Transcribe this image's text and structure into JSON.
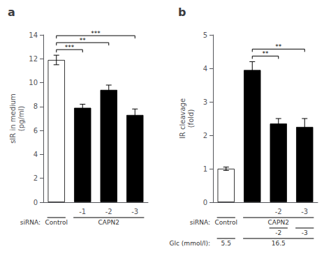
{
  "chart_data": [
    {
      "type": "bar",
      "title": "a",
      "categories": [
        null,
        "-1",
        "-2",
        "-3"
      ],
      "values": [
        11.9,
        7.9,
        9.4,
        7.3
      ],
      "errors": [
        0.4,
        0.3,
        0.4,
        0.5
      ],
      "colors": [
        "white",
        "black",
        "black",
        "black"
      ],
      "ylabel": "sIR in medium\n(pg/ml)",
      "ylim": [
        0,
        14
      ],
      "yticks": [
        0,
        2,
        4,
        6,
        8,
        10,
        12,
        14
      ],
      "grid": false,
      "annotations": [
        {
          "text": "***",
          "between": [
            0,
            1
          ]
        },
        {
          "text": "**",
          "between": [
            0,
            2
          ]
        },
        {
          "text": "***",
          "between": [
            0,
            3
          ]
        }
      ],
      "x_groups": [
        {
          "label": "siRNA:",
          "groups": [
            {
              "text": "Control",
              "between": [
                0,
                0
              ]
            },
            {
              "text": "CAPN2",
              "between": [
                1,
                3
              ]
            }
          ]
        }
      ]
    },
    {
      "type": "bar",
      "title": "b",
      "categories": [
        null,
        null,
        "-2",
        "-3"
      ],
      "values": [
        1.0,
        3.95,
        2.35,
        2.25
      ],
      "errors": [
        0.05,
        0.25,
        0.15,
        0.25
      ],
      "colors": [
        "white",
        "black",
        "black",
        "black"
      ],
      "ylabel": "IR cleavage\n(fold)",
      "ylim": [
        0,
        5
      ],
      "yticks": [
        0,
        1,
        2,
        3,
        4,
        5
      ],
      "grid": false,
      "annotations": [
        {
          "text": "**",
          "between": [
            1,
            2
          ]
        },
        {
          "text": "**",
          "between": [
            1,
            3
          ]
        }
      ],
      "x_groups": [
        {
          "label": "siRNA:",
          "groups": [
            {
              "text": "Control",
              "between": [
                0,
                0
              ]
            },
            {
              "text": "CAPN2",
              "between": [
                1,
                3
              ]
            }
          ]
        },
        {
          "groups": [
            {
              "text": "-2",
              "between": [
                2,
                2
              ]
            },
            {
              "text": "-3",
              "between": [
                3,
                3
              ]
            }
          ]
        },
        {
          "label": "Glc (mmol/l):",
          "groups": [
            {
              "text": "5.5",
              "between": [
                0,
                0
              ]
            },
            {
              "text": "16.5",
              "between": [
                1,
                3
              ]
            }
          ]
        }
      ]
    }
  ]
}
